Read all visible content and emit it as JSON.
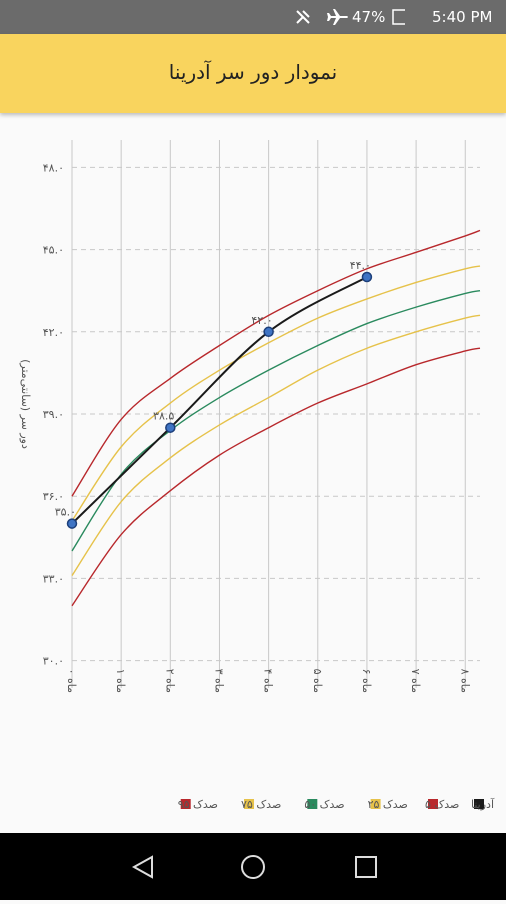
{
  "status_bar": {
    "battery": "47%",
    "time": "5:40 PM"
  },
  "header": {
    "title": "نمودار دور سر آدرینا"
  },
  "chart_data": {
    "type": "line",
    "ylabel": "دور سر (سانتی‌متر)",
    "xlim": [
      0,
      8.3
    ],
    "ylim": [
      29,
      49
    ],
    "xticks": [
      {
        "value": 0,
        "label": "ماه ۰"
      },
      {
        "value": 1,
        "label": "ماه ۱"
      },
      {
        "value": 2,
        "label": "ماه ۲"
      },
      {
        "value": 3,
        "label": "ماه ۳"
      },
      {
        "value": 4,
        "label": "ماه ۴"
      },
      {
        "value": 5,
        "label": "ماه ۵"
      },
      {
        "value": 6,
        "label": "ماه ۶"
      },
      {
        "value": 7,
        "label": "ماه ۷"
      },
      {
        "value": 8,
        "label": "ماه ۸"
      }
    ],
    "yticks": [
      {
        "value": 30,
        "label": "۳۰.۰"
      },
      {
        "value": 33,
        "label": "۳۳.۰"
      },
      {
        "value": 36,
        "label": "۳۶.۰"
      },
      {
        "value": 39,
        "label": "۳۹.۰"
      },
      {
        "value": 42,
        "label": "۴۲.۰"
      },
      {
        "value": 45,
        "label": "۴۵.۰"
      },
      {
        "value": 48,
        "label": "۴۸.۰"
      }
    ],
    "grid": true,
    "legend": "bottom",
    "series": [
      {
        "name": "آدرینا",
        "color": "#1a1a1a",
        "marker": true,
        "x": [
          0,
          2,
          4,
          6
        ],
        "values": [
          35,
          38.5,
          42,
          44
        ],
        "value_labels": [
          "۳۵.۰",
          "۳۸.۵",
          "۴۲.۰",
          "۴۴.۰"
        ]
      },
      {
        "name": "صدک ۵",
        "color": "#b8282c",
        "x": [
          0,
          1,
          2,
          3,
          4,
          5,
          6,
          7,
          8,
          8.3
        ],
        "values": [
          32.0,
          34.6,
          36.2,
          37.5,
          38.5,
          39.4,
          40.1,
          40.8,
          41.3,
          41.4
        ]
      },
      {
        "name": "صدک ۲۵",
        "color": "#e6c24a",
        "x": [
          0,
          1,
          2,
          3,
          4,
          5,
          6,
          7,
          8,
          8.3
        ],
        "values": [
          33.1,
          35.8,
          37.4,
          38.6,
          39.6,
          40.6,
          41.4,
          42.0,
          42.5,
          42.6
        ]
      },
      {
        "name": "صدک ۵۰",
        "color": "#2a8a5e",
        "x": [
          0,
          1,
          2,
          3,
          4,
          5,
          6,
          7,
          8,
          8.3
        ],
        "values": [
          34.0,
          36.8,
          38.4,
          39.6,
          40.6,
          41.5,
          42.3,
          42.9,
          43.4,
          43.5
        ]
      },
      {
        "name": "صدک ۷۵",
        "color": "#e6c24a",
        "x": [
          0,
          1,
          2,
          3,
          4,
          5,
          6,
          7,
          8,
          8.3
        ],
        "values": [
          35.1,
          37.8,
          39.4,
          40.6,
          41.6,
          42.5,
          43.2,
          43.8,
          44.3,
          44.4
        ]
      },
      {
        "name": "صدک ۹۵",
        "color": "#b8282c",
        "x": [
          0,
          1,
          2,
          3,
          4,
          5,
          6,
          7,
          8,
          8.3
        ],
        "values": [
          36.0,
          38.8,
          40.3,
          41.5,
          42.6,
          43.5,
          44.3,
          44.9,
          45.5,
          45.7
        ]
      }
    ]
  }
}
